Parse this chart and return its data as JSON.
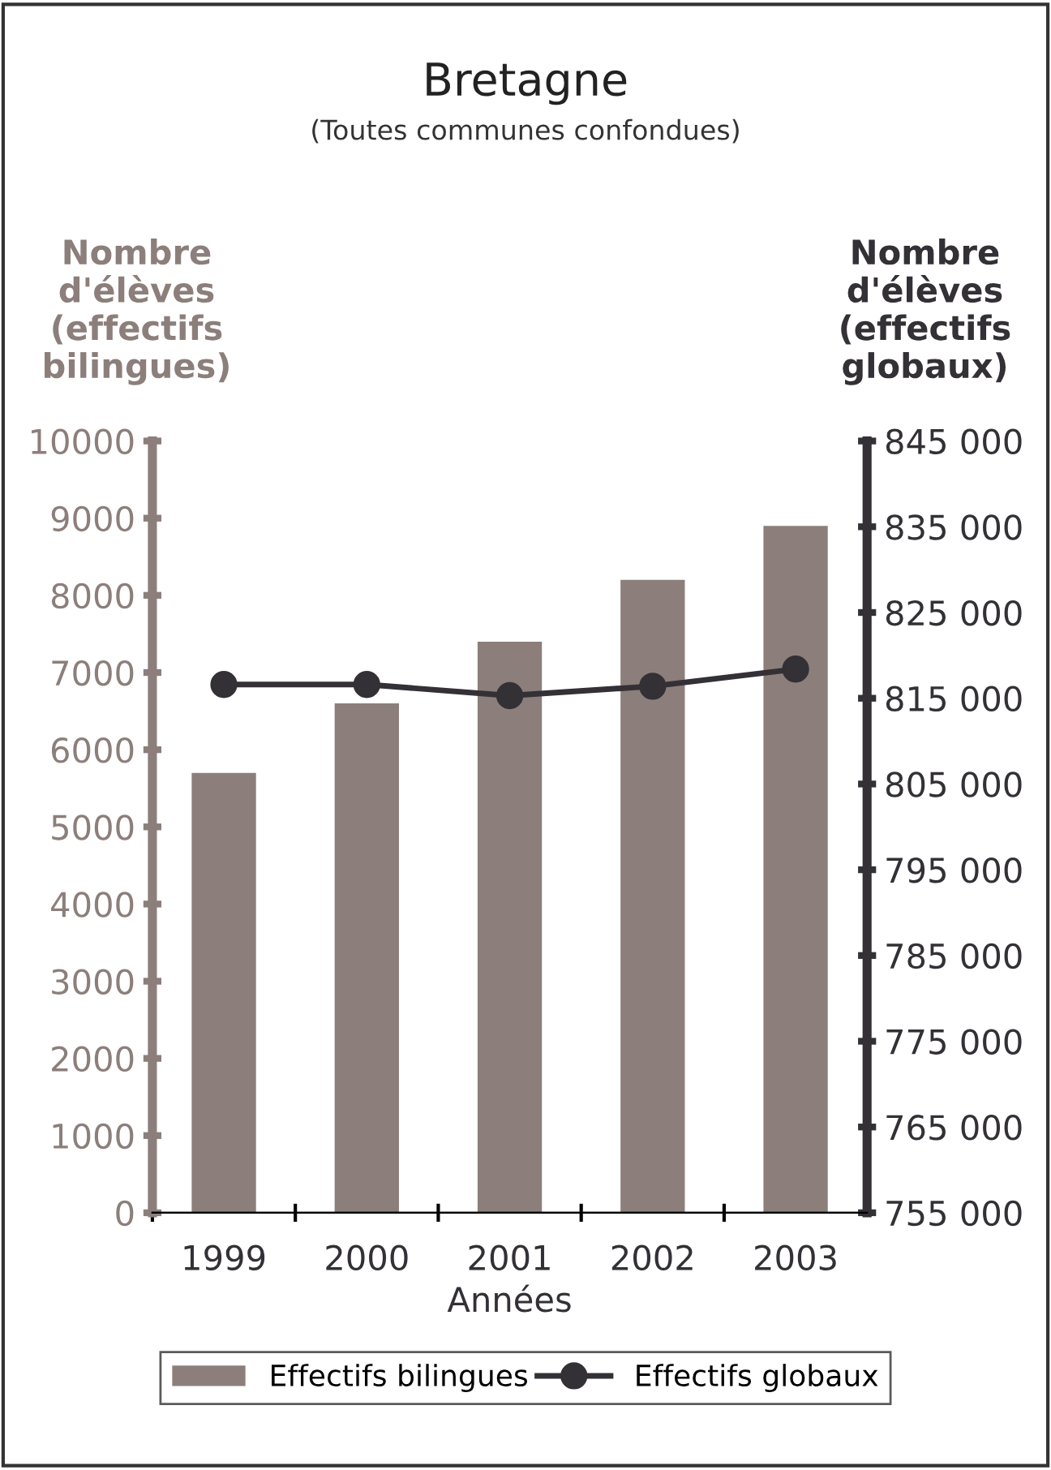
{
  "chart_data": {
    "type": "bar",
    "title": "Bretagne",
    "subtitle": "(Toutes communes confondues)",
    "xlabel": "Années",
    "ylabel": "Nombre\nd'élèves\n(effectifs\nbilingues)",
    "y2label": "Nombre\nd'élèves\n(effectifs\nglobaux)",
    "categories": [
      "1999",
      "2000",
      "2001",
      "2002",
      "2003"
    ],
    "series": [
      {
        "name": "Effectifs bilingues",
        "color": "#8c7f7b",
        "values": [
          5700,
          6600,
          7400,
          8200,
          8900
        ]
      },
      {
        "name": "Effectifs globaux",
        "color": "#333036",
        "type": "line",
        "axis": "y2",
        "marker": "circle",
        "values": [
          816600,
          816600,
          815300,
          816400,
          818400
        ]
      }
    ],
    "ylim": [
      0,
      10000
    ],
    "yticks": [
      0,
      1000,
      2000,
      3000,
      4000,
      5000,
      6000,
      7000,
      8000,
      9000,
      10000
    ],
    "y2lim": [
      755000,
      845000
    ],
    "y2ticks": [
      {
        "value": 755000,
        "label": "755 000"
      },
      {
        "value": 765000,
        "label": "765 000"
      },
      {
        "value": 775000,
        "label": "775 000"
      },
      {
        "value": 785000,
        "label": "785 000"
      },
      {
        "value": 795000,
        "label": "795 000"
      },
      {
        "value": 805000,
        "label": "805 000"
      },
      {
        "value": 815000,
        "label": "815 000"
      },
      {
        "value": 825000,
        "label": "825 000"
      },
      {
        "value": 835000,
        "label": "835 000"
      },
      {
        "value": 845000,
        "label": "845 000"
      }
    ],
    "grid": false,
    "legend": "bottom"
  }
}
